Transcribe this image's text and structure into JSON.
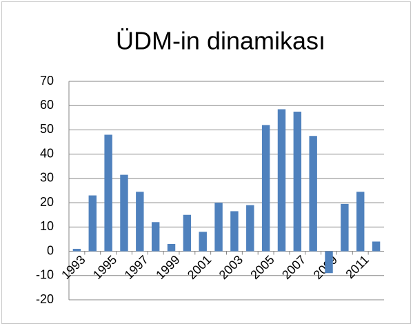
{
  "chart_data": {
    "type": "bar",
    "title": "ÜDM-in dinamikası",
    "categories": [
      "1993",
      null,
      "1995",
      null,
      "1997",
      null,
      "1999",
      null,
      "2001",
      null,
      "2003",
      null,
      "2005",
      null,
      "2007",
      null,
      "2009",
      null,
      "2011",
      null
    ],
    "values": [
      1,
      23,
      48,
      31.5,
      24.5,
      12,
      3,
      15,
      8,
      20,
      16.5,
      19,
      52,
      58.5,
      57.5,
      47.5,
      -9,
      19.5,
      24.5,
      4
    ],
    "color": "#4f81bd",
    "ylim": [
      -20,
      70
    ],
    "yticks": [
      -20,
      -10,
      0,
      10,
      20,
      30,
      40,
      50,
      60,
      70
    ],
    "grid": true
  }
}
